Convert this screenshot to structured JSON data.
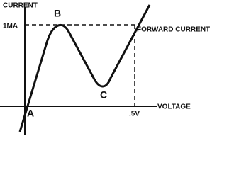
{
  "labels": {
    "y_axis": "CURRENT",
    "current_mark": "1MA",
    "point_b": "B",
    "forward_current": "FORWARD CURRENT",
    "point_c": "C",
    "point_a": "A",
    "voltage_mark": ".5V",
    "x_axis": "VOLTAGE"
  }
}
